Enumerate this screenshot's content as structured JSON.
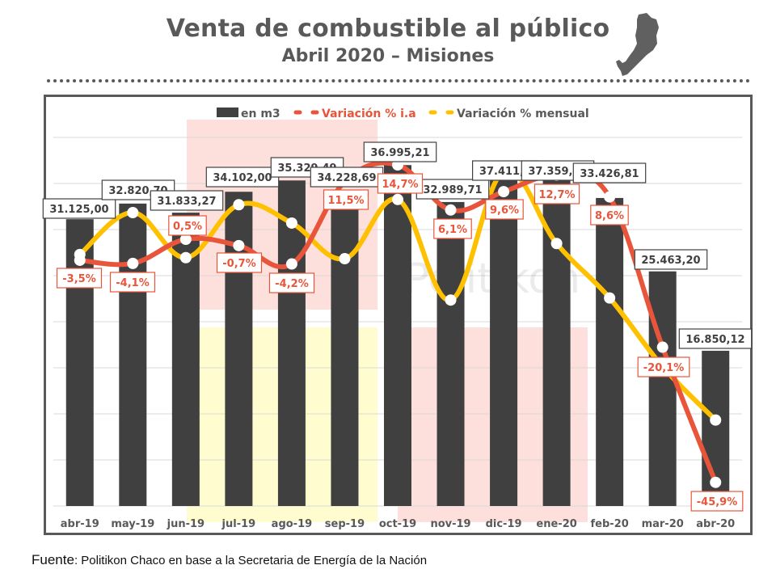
{
  "header": {
    "title": "Venta de combustible al público",
    "subtitle": "Abril 2020 – Misiones",
    "map_icon": "misiones-province-map-icon"
  },
  "footer": {
    "source_label": "Fuente",
    "source_text": ": Politikon Chaco en base a la Secretaria de Energía de la Nación"
  },
  "watermark": "Politikon",
  "colors": {
    "bars": "#404040",
    "ia_line": "#E8553A",
    "monthly_line": "#FFC000",
    "bg_pink": "#FDE0DC",
    "bg_yellow": "#FFFDD0",
    "title": "#595959"
  },
  "chart_data": {
    "type": "bar",
    "title": "Venta de combustible al público - Abril 2020 - Misiones",
    "categories": [
      "abr-19",
      "may-19",
      "jun-19",
      "jul-19",
      "ago-19",
      "sep-19",
      "oct-19",
      "nov-19",
      "dic-19",
      "ene-20",
      "feb-20",
      "mar-20",
      "abr-20"
    ],
    "legend": [
      "en m3",
      "Variación % i.a",
      "Variación % mensual"
    ],
    "legend_position": "top",
    "grid": true,
    "ylim": [
      0,
      40000
    ],
    "y2lim": [
      -50,
      20
    ],
    "series": [
      {
        "name": "en m3",
        "type": "bar",
        "axis": "primary",
        "values": [
          31125.0,
          32820.7,
          31833.27,
          34102.0,
          35329.49,
          34228.69,
          36995.21,
          32989.71,
          37411.9,
          37359.88,
          33426.81,
          25463.2,
          16850.12
        ],
        "labels": [
          "31.125,00",
          "32.820,70",
          "31.833,27",
          "34.102,00",
          "35.329,49",
          "34.228,69",
          "36.995,21",
          "32.989,71",
          "37.411,9",
          "37.359,88",
          "33.426,81",
          "25.463,20",
          "16.850,12"
        ]
      },
      {
        "name": "Variación % i.a",
        "type": "line",
        "axis": "secondary",
        "values": [
          -3.5,
          -4.1,
          0.5,
          -0.7,
          -4.2,
          11.5,
          14.7,
          6.1,
          9.6,
          12.7,
          8.6,
          -20.1,
          -45.9
        ],
        "labels": [
          "-3,5%",
          "-4,1%",
          "0,5%",
          "-0,7%",
          "-4,2%",
          "11,5%",
          "14,7%",
          "6,1%",
          "9,6%",
          "12,7%",
          "8,6%",
          "-20,1%",
          "-45,9%"
        ]
      },
      {
        "name": "Variación % mensual",
        "type": "line",
        "axis": "secondary",
        "values": [
          -2.4,
          5.6,
          -3.0,
          7.1,
          3.6,
          -3.2,
          8.1,
          -11.1,
          13.5,
          -0.3,
          -10.7,
          -23.8,
          -34.0
        ]
      }
    ]
  }
}
